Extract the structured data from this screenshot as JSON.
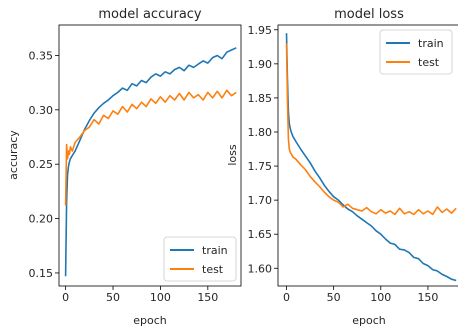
{
  "chart_data": [
    {
      "type": "line",
      "title": "model accuracy",
      "xlabel": "epoch",
      "ylabel": "accuracy",
      "xlim": [
        -7,
        185
      ],
      "ylim": [
        0.138,
        0.378
      ],
      "xticks": [
        0,
        50,
        100,
        150
      ],
      "xtick_labels": [
        "0",
        "50",
        "100",
        "150"
      ],
      "yticks": [
        0.15,
        0.2,
        0.25,
        0.3,
        0.35
      ],
      "ytick_labels": [
        "0.15",
        "0.20",
        "0.25",
        "0.30",
        "0.35"
      ],
      "grid": false,
      "legend_position": "lower-right",
      "series": [
        {
          "name": "train",
          "color": "#1f77b4",
          "x": [
            0,
            1,
            2,
            3,
            4,
            5,
            7,
            10,
            15,
            20,
            25,
            30,
            35,
            40,
            45,
            50,
            55,
            60,
            65,
            70,
            75,
            80,
            85,
            90,
            95,
            100,
            105,
            110,
            115,
            120,
            125,
            130,
            135,
            140,
            145,
            150,
            155,
            160,
            165,
            170,
            175,
            180
          ],
          "y": [
            0.147,
            0.215,
            0.24,
            0.248,
            0.252,
            0.255,
            0.258,
            0.262,
            0.272,
            0.282,
            0.29,
            0.297,
            0.302,
            0.306,
            0.309,
            0.313,
            0.316,
            0.32,
            0.318,
            0.324,
            0.322,
            0.327,
            0.325,
            0.33,
            0.333,
            0.331,
            0.335,
            0.333,
            0.337,
            0.339,
            0.336,
            0.341,
            0.339,
            0.342,
            0.345,
            0.343,
            0.348,
            0.35,
            0.347,
            0.353,
            0.355,
            0.357
          ]
        },
        {
          "name": "test",
          "color": "#ff7f0e",
          "x": [
            0,
            1,
            2,
            3,
            4,
            5,
            7,
            10,
            15,
            20,
            25,
            30,
            35,
            40,
            45,
            50,
            55,
            60,
            65,
            70,
            75,
            80,
            85,
            90,
            95,
            100,
            105,
            110,
            115,
            120,
            125,
            130,
            135,
            140,
            145,
            150,
            155,
            160,
            165,
            170,
            175,
            180
          ],
          "y": [
            0.212,
            0.268,
            0.255,
            0.262,
            0.259,
            0.266,
            0.262,
            0.27,
            0.275,
            0.281,
            0.284,
            0.291,
            0.287,
            0.295,
            0.292,
            0.299,
            0.296,
            0.303,
            0.298,
            0.305,
            0.301,
            0.307,
            0.303,
            0.31,
            0.306,
            0.312,
            0.307,
            0.313,
            0.309,
            0.315,
            0.309,
            0.316,
            0.311,
            0.314,
            0.309,
            0.316,
            0.311,
            0.317,
            0.311,
            0.318,
            0.313,
            0.316
          ]
        }
      ]
    },
    {
      "type": "line",
      "title": "model loss",
      "xlabel": "epoch",
      "ylabel": "loss",
      "xlim": [
        -9,
        184
      ],
      "ylim": [
        1.574,
        1.957
      ],
      "xticks": [
        0,
        50,
        100,
        150
      ],
      "xtick_labels": [
        "0",
        "50",
        "100",
        "150"
      ],
      "yticks": [
        1.6,
        1.65,
        1.7,
        1.75,
        1.8,
        1.85,
        1.9,
        1.95
      ],
      "ytick_labels": [
        "1.60",
        "1.65",
        "1.70",
        "1.75",
        "1.80",
        "1.85",
        "1.90",
        "1.95"
      ],
      "grid": false,
      "legend_position": "upper-right",
      "series": [
        {
          "name": "train",
          "color": "#1f77b4",
          "x": [
            0,
            1,
            2,
            3,
            4,
            5,
            7,
            10,
            15,
            20,
            25,
            30,
            35,
            40,
            45,
            50,
            55,
            60,
            65,
            70,
            75,
            80,
            85,
            90,
            95,
            100,
            105,
            110,
            115,
            120,
            125,
            130,
            135,
            140,
            145,
            150,
            155,
            160,
            165,
            170,
            175,
            180
          ],
          "y": [
            1.945,
            1.88,
            1.83,
            1.812,
            1.805,
            1.8,
            1.793,
            1.786,
            1.775,
            1.765,
            1.755,
            1.743,
            1.733,
            1.722,
            1.713,
            1.705,
            1.7,
            1.693,
            1.687,
            1.683,
            1.677,
            1.672,
            1.667,
            1.662,
            1.655,
            1.65,
            1.643,
            1.637,
            1.635,
            1.628,
            1.627,
            1.623,
            1.616,
            1.614,
            1.607,
            1.604,
            1.598,
            1.596,
            1.591,
            1.588,
            1.584,
            1.582
          ]
        },
        {
          "name": "test",
          "color": "#ff7f0e",
          "x": [
            0,
            1,
            2,
            3,
            4,
            5,
            7,
            10,
            15,
            20,
            25,
            30,
            35,
            40,
            45,
            50,
            55,
            60,
            65,
            70,
            75,
            80,
            85,
            90,
            95,
            100,
            105,
            110,
            115,
            120,
            125,
            130,
            135,
            140,
            145,
            150,
            155,
            160,
            165,
            170,
            175,
            180
          ],
          "y": [
            1.93,
            1.85,
            1.79,
            1.775,
            1.77,
            1.768,
            1.763,
            1.76,
            1.752,
            1.745,
            1.735,
            1.727,
            1.72,
            1.712,
            1.705,
            1.7,
            1.697,
            1.69,
            1.694,
            1.688,
            1.686,
            1.684,
            1.689,
            1.683,
            1.68,
            1.686,
            1.681,
            1.684,
            1.679,
            1.688,
            1.68,
            1.683,
            1.679,
            1.686,
            1.68,
            1.684,
            1.679,
            1.69,
            1.682,
            1.687,
            1.681,
            1.688
          ]
        }
      ]
    }
  ]
}
